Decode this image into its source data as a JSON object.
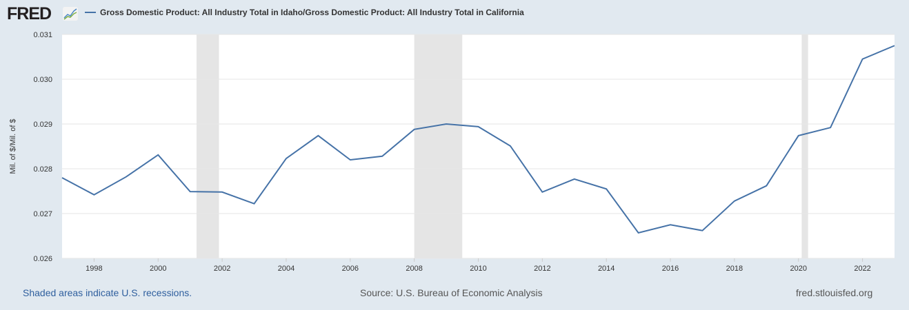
{
  "logo": "FRED",
  "chart_data": {
    "type": "line",
    "title": "Gross Domestic Product: All Industry Total in Idaho/Gross Domestic Product: All Industry Total in California",
    "ylabel": "Mil. of $/Mil. of $",
    "xlabel": "",
    "ylim": [
      0.026,
      0.031
    ],
    "xlim": [
      1997,
      2023
    ],
    "yticks": [
      "0.026",
      "0.027",
      "0.028",
      "0.029",
      "0.030",
      "0.031"
    ],
    "xticks": [
      "1998",
      "2000",
      "2002",
      "2004",
      "2006",
      "2008",
      "2010",
      "2012",
      "2014",
      "2016",
      "2018",
      "2020",
      "2022"
    ],
    "series": [
      {
        "name": "Gross Domestic Product: All Industry Total in Idaho/Gross Domestic Product: All Industry Total in California",
        "color": "#4572a7",
        "x": [
          1997,
          1998,
          1999,
          2000,
          2001,
          2002,
          2003,
          2004,
          2005,
          2006,
          2007,
          2008,
          2009,
          2010,
          2011,
          2012,
          2013,
          2014,
          2015,
          2016,
          2017,
          2018,
          2019,
          2020,
          2021,
          2022,
          2023
        ],
        "values": [
          0.0278,
          0.02742,
          0.02782,
          0.02831,
          0.02749,
          0.02748,
          0.02722,
          0.02823,
          0.02874,
          0.0282,
          0.02828,
          0.02888,
          0.029,
          0.02894,
          0.02851,
          0.02748,
          0.02777,
          0.02755,
          0.02657,
          0.02675,
          0.02662,
          0.02728,
          0.02762,
          0.02874,
          0.02892,
          0.03045,
          0.03075
        ]
      }
    ],
    "recessions": [
      [
        2001.2,
        2001.9
      ],
      [
        2008.0,
        2009.5
      ],
      [
        2020.1,
        2020.3
      ]
    ],
    "grid": true,
    "legend": "top-left"
  },
  "footer": {
    "left": "Shaded areas indicate U.S. recessions.",
    "center": "Source: U.S. Bureau of Economic Analysis",
    "right": "fred.stlouisfed.org"
  }
}
